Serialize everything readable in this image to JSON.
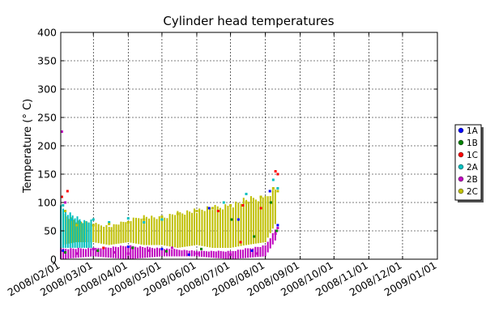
{
  "chart_data": {
    "type": "scatter",
    "title": "Cylinder head temperatures",
    "xlabel": "",
    "ylabel": "Temperature (° C)",
    "xlim": [
      "2008-02-01",
      "2009-01-01"
    ],
    "ylim": [
      0,
      400
    ],
    "y_ticks": [
      0,
      50,
      100,
      150,
      200,
      250,
      300,
      350,
      400
    ],
    "x_ticks": [
      "2008/02/01",
      "2008/03/01",
      "2008/04/01",
      "2008/05/01",
      "2008/06/01",
      "2008/07/01",
      "2008/08/01",
      "2008/09/01",
      "2008/10/01",
      "2008/11/01",
      "2008/12/01",
      "2009/01/01"
    ],
    "grid": true,
    "legend_position": "outside-right",
    "series": [
      {
        "name": "1A",
        "color": "#0000ff",
        "points": [
          [
            "2008-02-03",
            15
          ],
          [
            "2008-03-01",
            18
          ],
          [
            "2008-04-01",
            22
          ],
          [
            "2008-05-01",
            18
          ],
          [
            "2008-05-25",
            8
          ],
          [
            "2008-06-12",
            90
          ],
          [
            "2008-07-08",
            70
          ],
          [
            "2008-07-20",
            15
          ],
          [
            "2008-08-05",
            120
          ],
          [
            "2008-08-12",
            60
          ]
        ]
      },
      {
        "name": "1B",
        "color": "#008000",
        "points": [
          [
            "2008-02-05",
            12
          ],
          [
            "2008-03-05",
            15
          ],
          [
            "2008-04-05",
            20
          ],
          [
            "2008-05-05",
            14
          ],
          [
            "2008-06-05",
            18
          ],
          [
            "2008-07-02",
            70
          ],
          [
            "2008-07-22",
            40
          ],
          [
            "2008-08-06",
            100
          ],
          [
            "2008-08-11",
            50
          ]
        ]
      },
      {
        "name": "1C",
        "color": "#ff0000",
        "points": [
          [
            "2008-02-02",
            110
          ],
          [
            "2008-02-07",
            120
          ],
          [
            "2008-03-10",
            20
          ],
          [
            "2008-06-20",
            85
          ],
          [
            "2008-07-10",
            30
          ],
          [
            "2008-07-12",
            95
          ],
          [
            "2008-07-28",
            90
          ],
          [
            "2008-08-10",
            155
          ],
          [
            "2008-08-12",
            150
          ]
        ]
      },
      {
        "name": "2A",
        "color": "#00bfbf",
        "points": [
          [
            "2008-02-03",
            95
          ],
          [
            "2008-02-10",
            70
          ],
          [
            "2008-02-18",
            65
          ],
          [
            "2008-03-01",
            70
          ],
          [
            "2008-03-15",
            65
          ],
          [
            "2008-04-01",
            72
          ],
          [
            "2008-04-15",
            65
          ],
          [
            "2008-05-01",
            70
          ],
          [
            "2008-06-01",
            85
          ],
          [
            "2008-06-25",
            100
          ],
          [
            "2008-07-15",
            115
          ],
          [
            "2008-08-08",
            140
          ],
          [
            "2008-08-12",
            125
          ]
        ]
      },
      {
        "name": "2B",
        "color": "#bf00bf",
        "points": [
          [
            "2008-02-02",
            225
          ],
          [
            "2008-02-05",
            100
          ],
          [
            "2008-02-15",
            10
          ],
          [
            "2008-03-01",
            18
          ],
          [
            "2008-03-20",
            12
          ],
          [
            "2008-04-01",
            10
          ],
          [
            "2008-04-20",
            15
          ],
          [
            "2008-05-10",
            20
          ],
          [
            "2008-06-01",
            10
          ],
          [
            "2008-07-01",
            8
          ],
          [
            "2008-07-25",
            10
          ],
          [
            "2008-08-10",
            45
          ],
          [
            "2008-08-12",
            55
          ]
        ]
      },
      {
        "name": "2C",
        "color": "#bfbf00",
        "points": [
          [
            "2008-02-05",
            85
          ],
          [
            "2008-02-15",
            60
          ],
          [
            "2008-03-01",
            60
          ],
          [
            "2008-03-15",
            62
          ],
          [
            "2008-04-01",
            65
          ],
          [
            "2008-04-15",
            70
          ],
          [
            "2008-05-01",
            75
          ],
          [
            "2008-05-15",
            80
          ],
          [
            "2008-06-01",
            85
          ],
          [
            "2008-06-15",
            90
          ],
          [
            "2008-07-01",
            95
          ],
          [
            "2008-07-15",
            100
          ],
          [
            "2008-07-28",
            110
          ],
          [
            "2008-08-08",
            125
          ],
          [
            "2008-08-12",
            120
          ]
        ]
      }
    ],
    "dense_bands": [
      {
        "series": "2C",
        "from": "2008-02-01",
        "to": "2008-08-12",
        "band": [
          [
            "2008-02-01",
            25,
            85
          ],
          [
            "2008-02-15",
            30,
            70
          ],
          [
            "2008-03-01",
            30,
            65
          ],
          [
            "2008-03-15",
            25,
            60
          ],
          [
            "2008-04-01",
            30,
            70
          ],
          [
            "2008-04-15",
            25,
            80
          ],
          [
            "2008-05-01",
            25,
            75
          ],
          [
            "2008-05-15",
            20,
            85
          ],
          [
            "2008-06-01",
            25,
            90
          ],
          [
            "2008-06-15",
            20,
            95
          ],
          [
            "2008-07-01",
            20,
            100
          ],
          [
            "2008-07-15",
            25,
            110
          ],
          [
            "2008-08-01",
            30,
            115
          ],
          [
            "2008-08-12",
            70,
            130
          ]
        ]
      },
      {
        "series": "2B",
        "from": "2008-02-01",
        "to": "2008-08-12",
        "band": [
          [
            "2008-02-01",
            0,
            20
          ],
          [
            "2008-03-01",
            5,
            20
          ],
          [
            "2008-04-01",
            0,
            25
          ],
          [
            "2008-05-01",
            5,
            20
          ],
          [
            "2008-06-01",
            5,
            15
          ],
          [
            "2008-07-01",
            0,
            15
          ],
          [
            "2008-08-01",
            5,
            25
          ],
          [
            "2008-08-12",
            40,
            60
          ]
        ]
      },
      {
        "series": "2A",
        "from": "2008-02-01",
        "to": "2008-03-01",
        "band": [
          [
            "2008-02-01",
            20,
            95
          ],
          [
            "2008-02-20",
            20,
            70
          ],
          [
            "2008-03-01",
            20,
            70
          ]
        ]
      }
    ]
  }
}
